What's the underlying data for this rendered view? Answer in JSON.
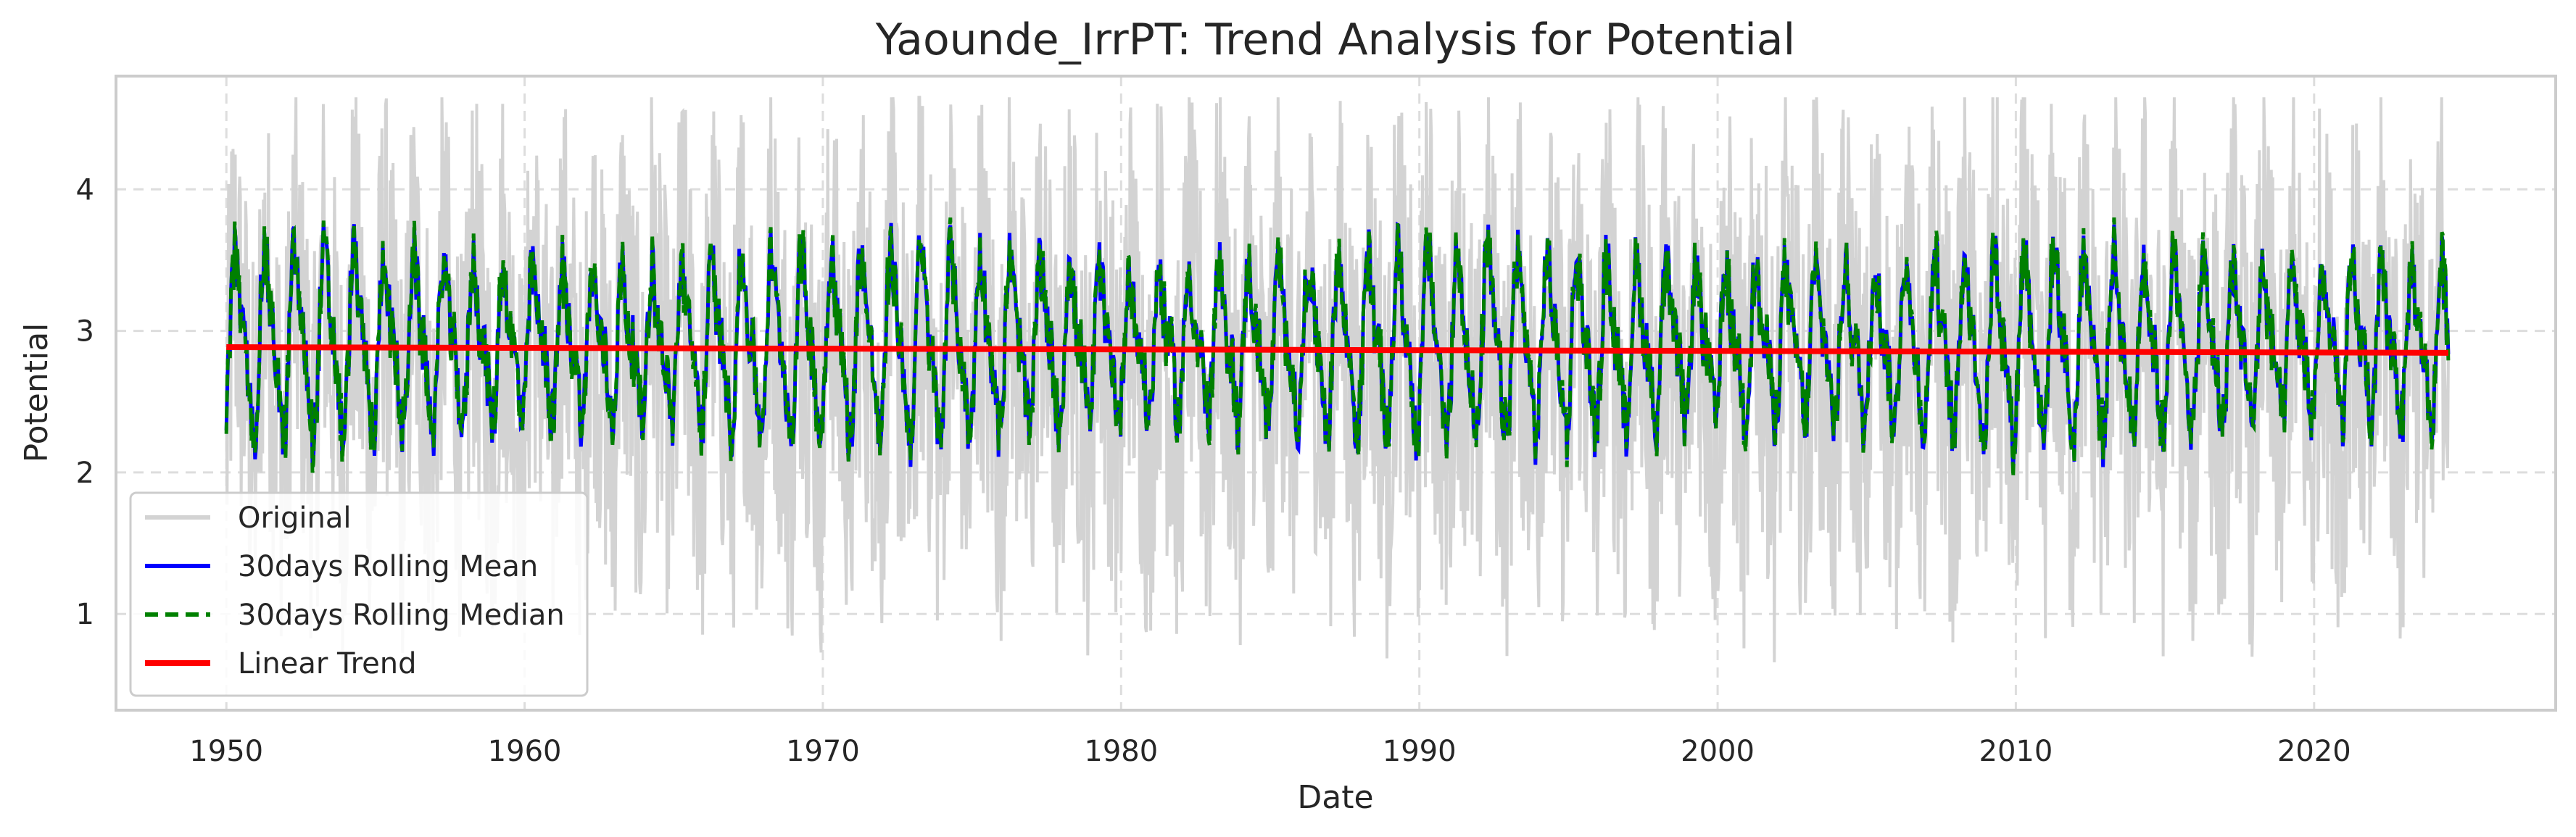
{
  "chart_data": {
    "type": "line",
    "title": "Yaounde_IrrPT: Trend Analysis for Potential",
    "xlabel": "Date",
    "ylabel": "Potential",
    "xlim": [
      1946.3,
      2028.1
    ],
    "ylim": [
      0.32,
      4.8
    ],
    "x_ticks": [
      "1950",
      "1960",
      "1970",
      "1980",
      "1990",
      "2000",
      "2010",
      "2020"
    ],
    "y_ticks": [
      "1",
      "2",
      "3",
      "4"
    ],
    "grid": true,
    "legend_position": "lower-left",
    "series": [
      {
        "name": "Original",
        "color": "#d3d3d3",
        "style": "solid",
        "x_range": [
          1950.0,
          2024.5
        ],
        "typical_range": [
          1.0,
          4.5
        ],
        "min": 0.5,
        "max": 4.65
      },
      {
        "name": "30days Rolling Mean",
        "color": "#0000ff",
        "style": "solid",
        "x_range": [
          1950.0,
          2024.5
        ],
        "typical_range": [
          2.2,
          3.8
        ],
        "min": 1.9,
        "max": 4.15
      },
      {
        "name": "30days Rolling Median",
        "color": "#008000",
        "style": "dashed",
        "x_range": [
          1950.0,
          2024.5
        ],
        "typical_range": [
          2.2,
          3.8
        ],
        "min": 1.8,
        "max": 4.15
      },
      {
        "name": "Linear Trend",
        "color": "#ff0000",
        "style": "solid",
        "x": [
          1950.0,
          2024.5
        ],
        "y": [
          2.885,
          2.845
        ]
      }
    ]
  }
}
